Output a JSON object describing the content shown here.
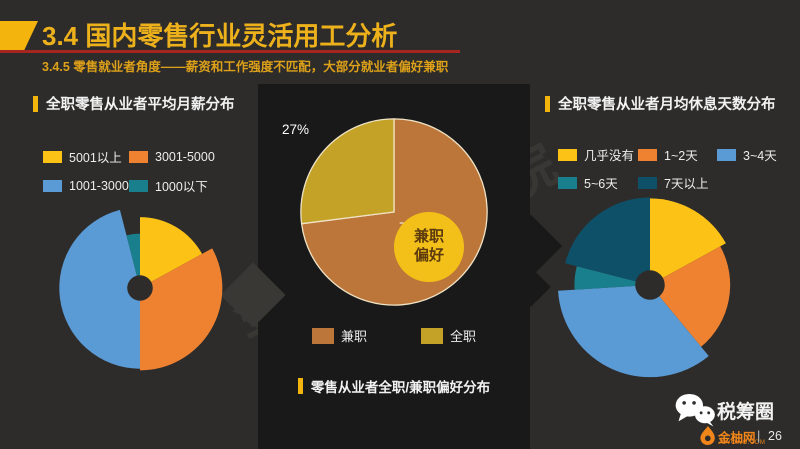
{
  "header": {
    "title": "3.4 国内零售行业灵活用工分析",
    "subtitle": "3.4.5 零售就业者角度——薪资和工作强度不匹配，大部分就业者偏好兼职"
  },
  "watermark": {
    "text": "金柚网研究院"
  },
  "colors": {
    "background": "#2d2c2b",
    "center_panel": "#191919",
    "accent_yellow": "#f3b40e",
    "title_gold": "#edb11b",
    "underline_red": "#a5261f",
    "text_white": "#f2f2f2",
    "brand_orange": "#f08519",
    "center_circle_yellow": "#f2c018",
    "pie_outline_cream": "#efe3c6"
  },
  "chart_data": [
    {
      "id": "salary",
      "type": "pie",
      "variant": "rose",
      "title": "全职零售从业者平均月薪分布",
      "unit": "%",
      "legend_position": "top",
      "slices": [
        {
          "label": "5001以上",
          "value": 17,
          "color": "#fdc216",
          "radius": 0.86
        },
        {
          "label": "3001-5000",
          "value": 33,
          "color": "#ee8231",
          "radius": 1.0
        },
        {
          "label": "1001-3000",
          "value": 46,
          "color": "#5b9bd5",
          "radius": 0.98
        },
        {
          "label": "1000以下",
          "value": 4,
          "color": "#1a7f8c",
          "radius": 0.66
        }
      ]
    },
    {
      "id": "preference",
      "type": "pie",
      "variant": "pie",
      "title": "零售从业者全职/兼职偏好分布",
      "center_label_lines": [
        "兼职",
        "偏好"
      ],
      "unit": "%",
      "legend_position": "bottom",
      "slices": [
        {
          "label": "兼职",
          "value": 73,
          "color": "#bd7639",
          "radius": 1.0,
          "pct_label": "73%"
        },
        {
          "label": "全职",
          "value": 27,
          "color": "#c3a227",
          "radius": 1.0,
          "pct_label": "27%"
        }
      ]
    },
    {
      "id": "restdays",
      "type": "pie",
      "variant": "rose",
      "title": "全职零售从业者月均休息天数分布",
      "unit": "%",
      "legend_position": "top",
      "slices": [
        {
          "label": "几乎没有",
          "value": 17,
          "color": "#fdc216",
          "radius": 0.94
        },
        {
          "label": "1~2天",
          "value": 22,
          "color": "#ee8231",
          "radius": 0.87
        },
        {
          "label": "3~4天",
          "value": 35,
          "color": "#5b9bd5",
          "radius": 1.0
        },
        {
          "label": "5~6天",
          "value": 5,
          "color": "#1a7f8c",
          "radius": 0.82
        },
        {
          "label": "7天以上",
          "value": 21,
          "color": "#0e5068",
          "radius": 0.95
        }
      ]
    }
  ],
  "footer": {
    "wechat_name": "税筹圈",
    "brand_name": "金柚网",
    "brand_domain": "JOYOWO.COM",
    "divider": "|",
    "page_number": "26"
  }
}
